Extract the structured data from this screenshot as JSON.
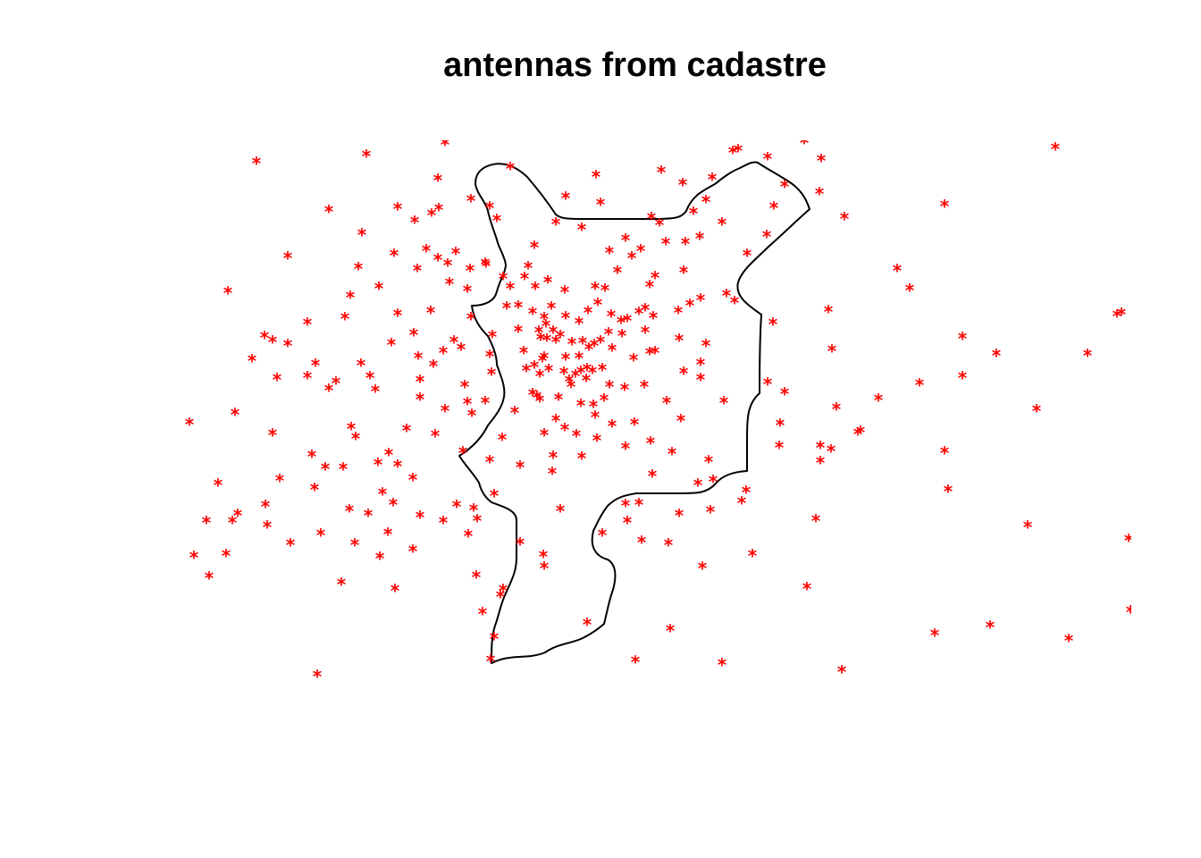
{
  "title": "antennas from cadastre",
  "colors": {
    "antenna": "#ff0000",
    "boundary": "#000000",
    "background": "#ffffff"
  },
  "marker_symbol": "*",
  "map_elements": [
    "boundary-polygon",
    "antenna-markers"
  ],
  "antenna_count": 300
}
